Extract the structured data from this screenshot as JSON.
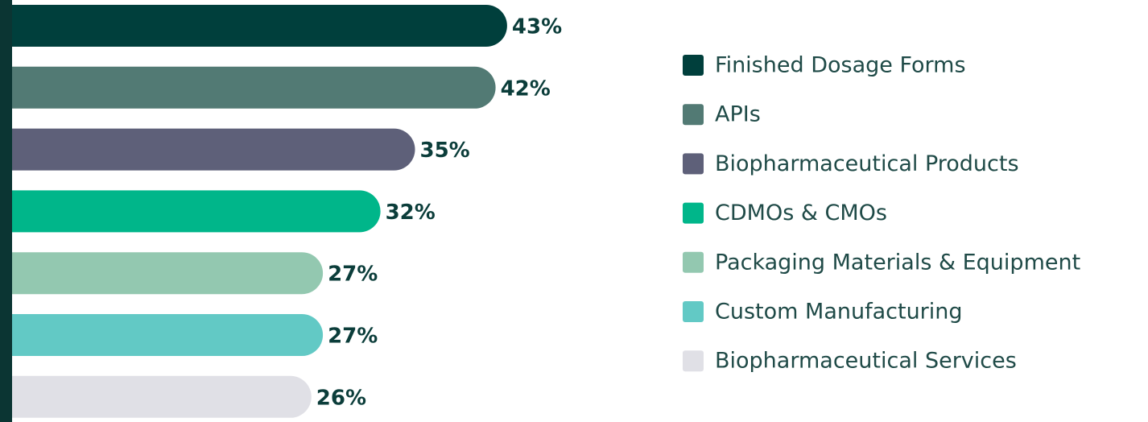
{
  "chart_data": {
    "type": "bar",
    "orientation": "horizontal",
    "categories": [
      "Finished Dosage Forms",
      "APIs",
      "Biopharmaceutical Products",
      "CDMOs & CMOs",
      "Packaging Materials & Equipment",
      "Custom Manufacturing",
      "Biopharmaceutical Services"
    ],
    "values": [
      43,
      42,
      35,
      32,
      27,
      27,
      26
    ],
    "value_labels": [
      "43%",
      "42%",
      "35%",
      "32%",
      "27%",
      "27%",
      "26%"
    ],
    "colors": [
      "#003f3c",
      "#527a74",
      "#5e6079",
      "#00b68a",
      "#93c8b0",
      "#62c9c5",
      "#e0e0e6"
    ],
    "legend": "right"
  }
}
